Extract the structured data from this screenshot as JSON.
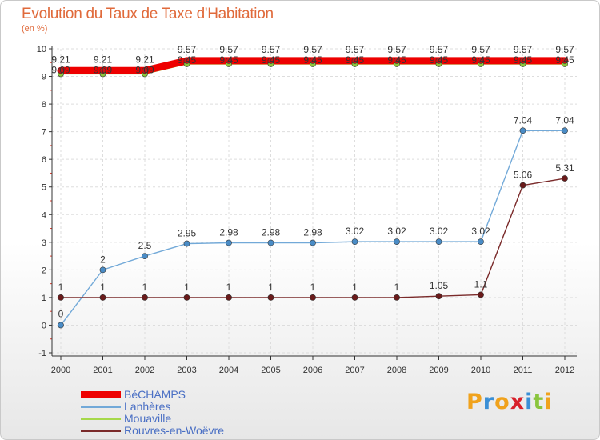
{
  "header": {
    "title": "Evolution du Taux de Taxe d'Habitation",
    "subtitle": "(en %)"
  },
  "brand": {
    "text": "Proxiti",
    "letter_colors": [
      "#f0a21c",
      "#3a8fd6",
      "#f0a21c",
      "#d8202a",
      "#3a8fd6",
      "#8ac53e",
      "#f0a21c"
    ]
  },
  "colors": {
    "title": "#e06a3b",
    "axis": "#333333",
    "grid": "#dddddd",
    "tick_minor": "#e03a2a"
  },
  "chart_data": {
    "type": "line",
    "title": "Evolution du Taux de Taxe d'Habitation",
    "ylabel": "(en %)",
    "xlabel": "",
    "x": [
      "2000",
      "2001",
      "2002",
      "2003",
      "2004",
      "2005",
      "2006",
      "2007",
      "2008",
      "2009",
      "2010",
      "2011",
      "2012"
    ],
    "ylim": [
      -1,
      10
    ],
    "yticks": [
      "-1",
      "0",
      "1",
      "2",
      "3",
      "4",
      "5",
      "6",
      "7",
      "8",
      "9",
      "10"
    ],
    "grid": true,
    "legend_position": "bottom-left",
    "series": [
      {
        "name": "BéCHAMPS",
        "color": "#ee0000",
        "values": [
          9.21,
          9.21,
          9.21,
          9.57,
          9.57,
          9.57,
          9.57,
          9.57,
          9.57,
          9.57,
          9.57,
          9.57,
          9.57
        ],
        "labels": [
          "9.21",
          "9.21",
          "9.21",
          "9.57",
          "9.57",
          "9.57",
          "9.57",
          "9.57",
          "9.57",
          "9.57",
          "9.57",
          "9.57",
          "9.57"
        ]
      },
      {
        "name": "Lanhères",
        "color": "#72a9d8",
        "values": [
          0,
          2,
          2.5,
          2.95,
          2.98,
          2.98,
          2.98,
          3.02,
          3.02,
          3.02,
          3.02,
          7.04,
          7.04
        ],
        "labels": [
          "0",
          "2",
          "2.5",
          "2.95",
          "2.98",
          "2.98",
          "2.98",
          "3.02",
          "3.02",
          "3.02",
          "3.02",
          "7.04",
          "7.04"
        ]
      },
      {
        "name": "Mouaville",
        "color": "#a6d84a",
        "values": [
          9.09,
          9.09,
          9.09,
          9.45,
          9.45,
          9.45,
          9.45,
          9.45,
          9.45,
          9.45,
          9.45,
          9.45,
          9.45
        ],
        "labels": [
          "9.09",
          "9.09",
          "9.09",
          "9.45",
          "9.45",
          "9.45",
          "9.45",
          "9.45",
          "9.45",
          "9.45",
          "9.45",
          "9.45",
          "9.45"
        ]
      },
      {
        "name": "Rouvres-en-Woëvre",
        "color": "#7a2a2a",
        "values": [
          1,
          1,
          1,
          1,
          1,
          1,
          1,
          1,
          1,
          1.05,
          1.1,
          5.06,
          5.31
        ],
        "labels": [
          "1",
          "1",
          "1",
          "1",
          "1",
          "1",
          "1",
          "1",
          "1",
          "1.05",
          "1.1",
          "5.06",
          "5.31"
        ]
      }
    ]
  }
}
